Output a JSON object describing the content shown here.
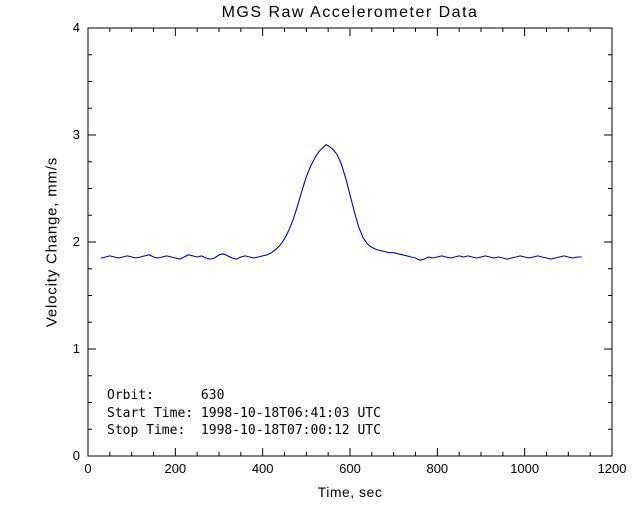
{
  "chart_data": {
    "type": "line",
    "title": "MGS Raw Accelerometer Data",
    "xlabel": "Time, sec",
    "ylabel": "Velocity Change, mm/s",
    "xlim": [
      0,
      1200
    ],
    "ylim": [
      0,
      4
    ],
    "xticks": [
      0,
      200,
      400,
      600,
      800,
      1000,
      1200
    ],
    "yticks": [
      0,
      1,
      2,
      3,
      4
    ],
    "x_minor_step": 50,
    "y_minor_step": 0.25,
    "grid": false,
    "line_color": "#0000c8",
    "axis_color": "#000000",
    "background_color": "#ffffff",
    "series": [
      {
        "name": "velocity-change",
        "points": [
          [
            30,
            1.85
          ],
          [
            40,
            1.86
          ],
          [
            50,
            1.87
          ],
          [
            60,
            1.86
          ],
          [
            70,
            1.85
          ],
          [
            80,
            1.86
          ],
          [
            90,
            1.87
          ],
          [
            100,
            1.86
          ],
          [
            110,
            1.85
          ],
          [
            120,
            1.86
          ],
          [
            130,
            1.87
          ],
          [
            140,
            1.88
          ],
          [
            150,
            1.86
          ],
          [
            160,
            1.85
          ],
          [
            170,
            1.86
          ],
          [
            180,
            1.87
          ],
          [
            190,
            1.86
          ],
          [
            200,
            1.85
          ],
          [
            210,
            1.84
          ],
          [
            220,
            1.86
          ],
          [
            230,
            1.88
          ],
          [
            240,
            1.87
          ],
          [
            250,
            1.86
          ],
          [
            260,
            1.87
          ],
          [
            270,
            1.85
          ],
          [
            280,
            1.84
          ],
          [
            290,
            1.85
          ],
          [
            300,
            1.88
          ],
          [
            310,
            1.89
          ],
          [
            320,
            1.87
          ],
          [
            330,
            1.85
          ],
          [
            340,
            1.84
          ],
          [
            350,
            1.86
          ],
          [
            360,
            1.87
          ],
          [
            370,
            1.86
          ],
          [
            380,
            1.85
          ],
          [
            390,
            1.86
          ],
          [
            400,
            1.87
          ],
          [
            410,
            1.88
          ],
          [
            420,
            1.9
          ],
          [
            430,
            1.93
          ],
          [
            440,
            1.97
          ],
          [
            450,
            2.03
          ],
          [
            460,
            2.11
          ],
          [
            470,
            2.21
          ],
          [
            480,
            2.34
          ],
          [
            490,
            2.48
          ],
          [
            500,
            2.61
          ],
          [
            510,
            2.71
          ],
          [
            520,
            2.79
          ],
          [
            530,
            2.85
          ],
          [
            540,
            2.89
          ],
          [
            545,
            2.91
          ],
          [
            550,
            2.9
          ],
          [
            560,
            2.87
          ],
          [
            570,
            2.82
          ],
          [
            580,
            2.73
          ],
          [
            590,
            2.6
          ],
          [
            600,
            2.44
          ],
          [
            610,
            2.28
          ],
          [
            620,
            2.14
          ],
          [
            630,
            2.04
          ],
          [
            640,
            1.98
          ],
          [
            650,
            1.95
          ],
          [
            660,
            1.93
          ],
          [
            670,
            1.92
          ],
          [
            680,
            1.91
          ],
          [
            690,
            1.9
          ],
          [
            700,
            1.9
          ],
          [
            710,
            1.89
          ],
          [
            720,
            1.88
          ],
          [
            730,
            1.87
          ],
          [
            740,
            1.86
          ],
          [
            750,
            1.85
          ],
          [
            760,
            1.83
          ],
          [
            770,
            1.84
          ],
          [
            780,
            1.86
          ],
          [
            790,
            1.85
          ],
          [
            800,
            1.86
          ],
          [
            810,
            1.87
          ],
          [
            820,
            1.86
          ],
          [
            830,
            1.85
          ],
          [
            840,
            1.86
          ],
          [
            850,
            1.87
          ],
          [
            860,
            1.86
          ],
          [
            870,
            1.87
          ],
          [
            880,
            1.86
          ],
          [
            890,
            1.85
          ],
          [
            900,
            1.86
          ],
          [
            910,
            1.87
          ],
          [
            920,
            1.86
          ],
          [
            930,
            1.85
          ],
          [
            940,
            1.86
          ],
          [
            950,
            1.85
          ],
          [
            960,
            1.84
          ],
          [
            970,
            1.85
          ],
          [
            980,
            1.86
          ],
          [
            990,
            1.87
          ],
          [
            1000,
            1.86
          ],
          [
            1010,
            1.85
          ],
          [
            1020,
            1.86
          ],
          [
            1030,
            1.87
          ],
          [
            1040,
            1.86
          ],
          [
            1050,
            1.85
          ],
          [
            1060,
            1.84
          ],
          [
            1070,
            1.85
          ],
          [
            1080,
            1.86
          ],
          [
            1090,
            1.87
          ],
          [
            1100,
            1.86
          ],
          [
            1110,
            1.85
          ],
          [
            1120,
            1.86
          ],
          [
            1130,
            1.86
          ]
        ]
      }
    ],
    "annotations": [
      "Orbit:      630",
      "Start Time: 1998-10-18T06:41:03 UTC",
      "Stop Time:  1998-10-18T07:00:12 UTC"
    ]
  }
}
